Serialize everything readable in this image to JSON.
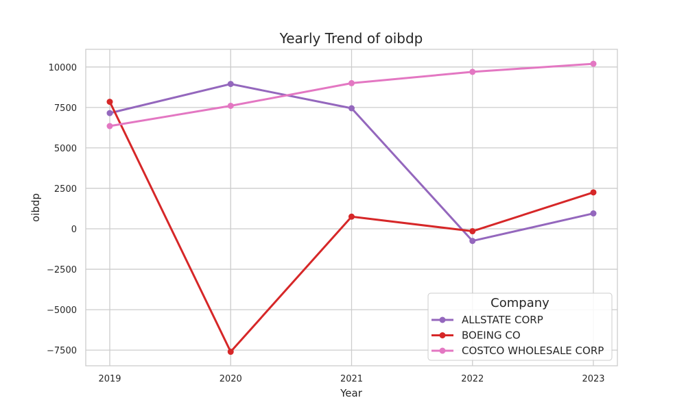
{
  "chart_data": {
    "type": "line",
    "title": "Yearly Trend of oibdp",
    "xlabel": "Year",
    "ylabel": "oibdp",
    "x": [
      2019,
      2020,
      2021,
      2022,
      2023
    ],
    "x_tick_labels": [
      "2019",
      "2020",
      "2021",
      "2022",
      "2023"
    ],
    "ylim": [
      -8500,
      11000
    ],
    "y_ticks": [
      -7500,
      -5000,
      -2500,
      0,
      2500,
      5000,
      7500,
      10000
    ],
    "y_tick_labels": [
      "−7500",
      "−5000",
      "−2500",
      "0",
      "2500",
      "5000",
      "7500",
      "10000"
    ],
    "grid": true,
    "legend": {
      "title": "Company",
      "placement": "lower-right"
    },
    "series": [
      {
        "name": "ALLSTATE CORP",
        "color": "#9467bd",
        "values": [
          7150,
          8950,
          7450,
          -750,
          950
        ]
      },
      {
        "name": "BOEING CO",
        "color": "#d62728",
        "values": [
          7850,
          -7600,
          750,
          -150,
          2250
        ]
      },
      {
        "name": "COSTCO WHOLESALE CORP",
        "color": "#e377c2",
        "values": [
          6350,
          7600,
          9000,
          9700,
          10200
        ]
      }
    ]
  }
}
